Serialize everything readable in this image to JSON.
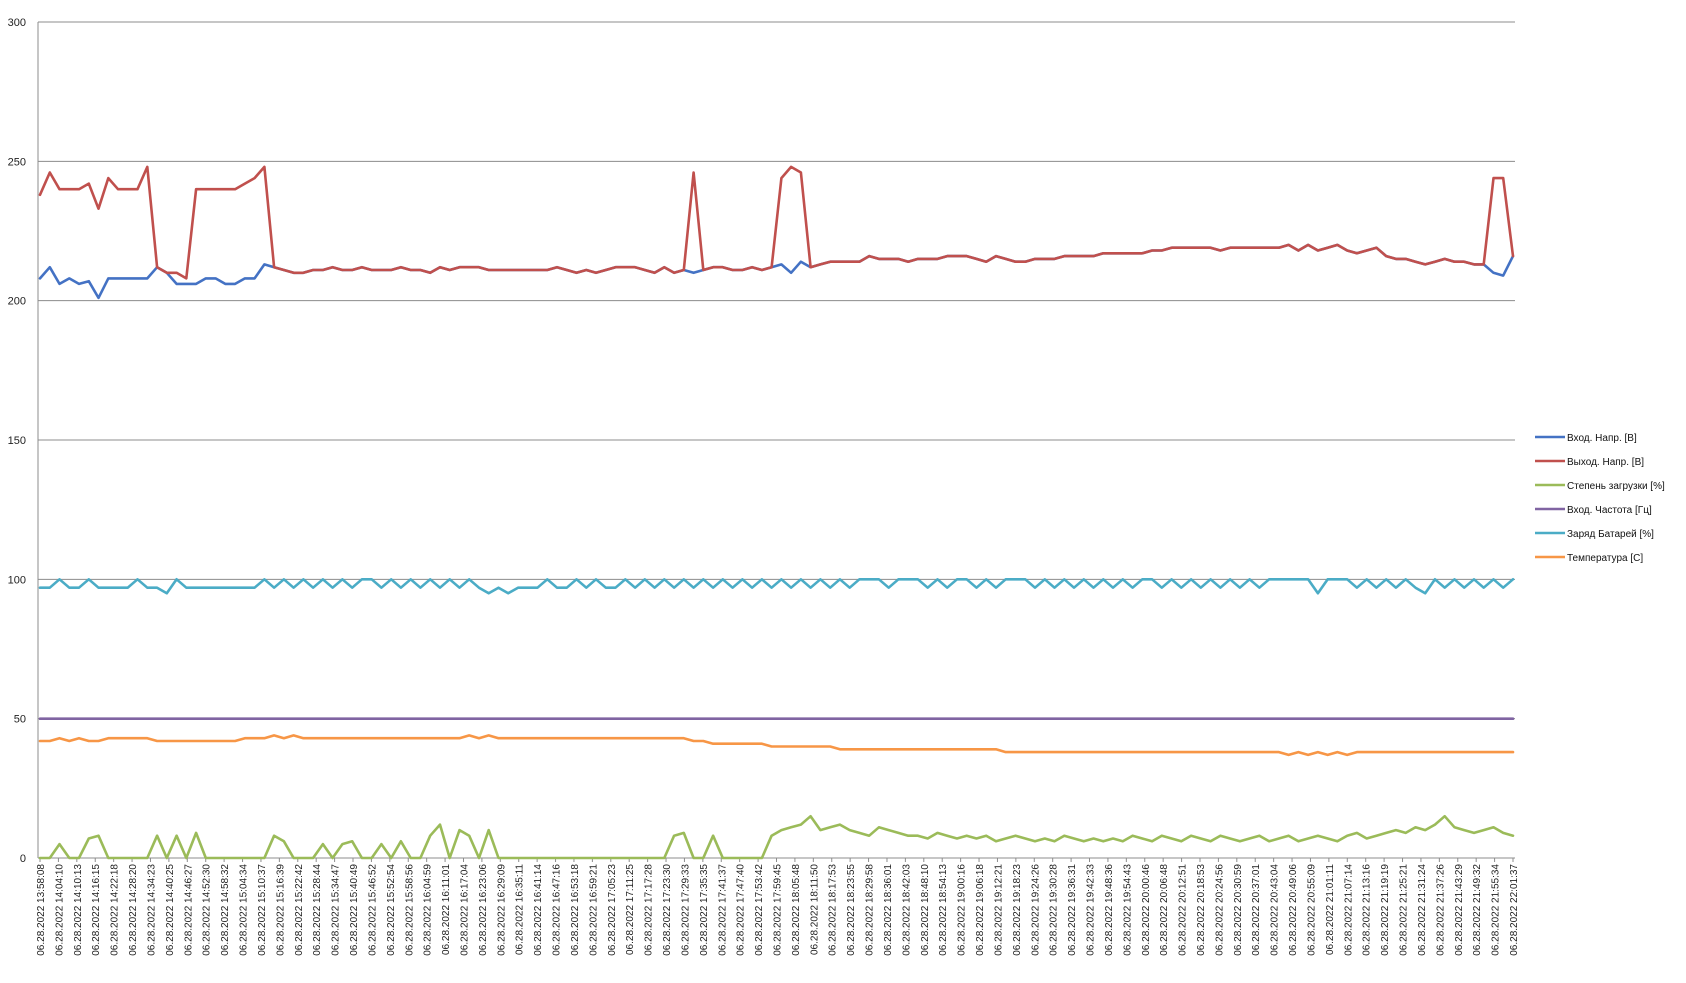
{
  "chart_data": {
    "type": "line",
    "title": "",
    "xlabel": "",
    "ylabel": "",
    "ylim": [
      0,
      300
    ],
    "y_ticks": [
      0,
      50,
      100,
      150,
      200,
      250,
      300
    ],
    "grid": "horizontal",
    "legend_position": "right",
    "x_tick_labels": [
      "06.28.2022 13:58:08",
      "06.28.2022 14:04:10",
      "06.28.2022 14:10:13",
      "06.28.2022 14:16:15",
      "06.28.2022 14:22:18",
      "06.28.2022 14:28:20",
      "06.28.2022 14:34:23",
      "06.28.2022 14:40:25",
      "06.28.2022 14:46:27",
      "06.28.2022 14:52:30",
      "06.28.2022 14:58:32",
      "06.28.2022 15:04:34",
      "06.28.2022 15:10:37",
      "06.28.2022 15:16:39",
      "06.28.2022 15:22:42",
      "06.28.2022 15:28:44",
      "06.28.2022 15:34:47",
      "06.28.2022 15:40:49",
      "06.28.2022 15:46:52",
      "06.28.2022 15:52:54",
      "06.28.2022 15:58:56",
      "06.28.2022 16:04:59",
      "06.28.2022 16:11:01",
      "06.28.2022 16:17:04",
      "06.28.2022 16:23:06",
      "06.28.2022 16:29:09",
      "06.28.2022 16:35:11",
      "06.28.2022 16:41:14",
      "06.28.2022 16:47:16",
      "06.28.2022 16:53:18",
      "06.28.2022 16:59:21",
      "06.28.2022 17:05:23",
      "06.28.2022 17:11:25",
      "06.28.2022 17:17:28",
      "06.28.2022 17:23:30",
      "06.28.2022 17:29:33",
      "06.28.2022 17:35:35",
      "06.28.2022 17:41:37",
      "06.28.2022 17:47:40",
      "06.28.2022 17:53:42",
      "06.28.2022 17:59:45",
      "06.28.2022 18:05:48",
      "06.28.2022 18:11:50",
      "06.28.2022 18:17:53",
      "06.28.2022 18:23:55",
      "06.28.2022 18:29:58",
      "06.28.2022 18:36:01",
      "06.28.2022 18:42:03",
      "06.28.2022 18:48:10",
      "06.28.2022 18:54:13",
      "06.28.2022 19:00:16",
      "06.28.2022 19:06:18",
      "06.28.2022 19:12:21",
      "06.28.2022 19:18:23",
      "06.28.2022 19:24:26",
      "06.28.2022 19:30:28",
      "06.28.2022 19:36:31",
      "06.28.2022 19:42:33",
      "06.28.2022 19:48:36",
      "06.28.2022 19:54:43",
      "06.28.2022 20:00:46",
      "06.28.2022 20:06:48",
      "06.28.2022 20:12:51",
      "06.28.2022 20:18:53",
      "06.28.2022 20:24:56",
      "06.28.2022 20:30:59",
      "06.28.2022 20:37:01",
      "06.28.2022 20:43:04",
      "06.28.2022 20:49:06",
      "06.28.2022 20:55:09",
      "06.28.2022 21:01:11",
      "06.28.2022 21:07:14",
      "06.28.2022 21:13:16",
      "06.28.2022 21:19:19",
      "06.28.2022 21:25:21",
      "06.28.2022 21:31:24",
      "06.28.2022 21:37:26",
      "06.28.2022 21:43:29",
      "06.28.2022 21:49:32",
      "06.28.2022 21:55:34",
      "06.28.2022 22:01:37"
    ],
    "series": [
      {
        "name": "Вход. Напр. [В]",
        "color": "#4472c4",
        "values": [
          208,
          212,
          206,
          208,
          206,
          207,
          201,
          208,
          208,
          208,
          208,
          208,
          212,
          210,
          206,
          206,
          206,
          208,
          208,
          206,
          206,
          208,
          208,
          213,
          212,
          211,
          210,
          210,
          211,
          211,
          212,
          211,
          211,
          212,
          211,
          211,
          211,
          212,
          211,
          211,
          210,
          212,
          211,
          212,
          212,
          212,
          211,
          211,
          211,
          211,
          211,
          211,
          211,
          212,
          211,
          210,
          211,
          210,
          211,
          212,
          212,
          212,
          211,
          210,
          212,
          210,
          211,
          210,
          211,
          212,
          212,
          211,
          211,
          212,
          211,
          212,
          213,
          210,
          214,
          212,
          213,
          214,
          214,
          214,
          214,
          216,
          215,
          215,
          215,
          214,
          215,
          215,
          215,
          216,
          216,
          216,
          215,
          214,
          216,
          215,
          214,
          214,
          215,
          215,
          215,
          216,
          216,
          216,
          216,
          217,
          217,
          217,
          217,
          217,
          218,
          218,
          219,
          219,
          219,
          219,
          219,
          218,
          219,
          219,
          219,
          219,
          219,
          219,
          220,
          218,
          220,
          218,
          219,
          220,
          218,
          217,
          218,
          219,
          216,
          215,
          215,
          214,
          213,
          214,
          215,
          214,
          214,
          213,
          213,
          210,
          209,
          216
        ]
      },
      {
        "name": "Выход. Напр. [В]",
        "color": "#c0504d",
        "values": [
          238,
          246,
          240,
          240,
          240,
          242,
          233,
          244,
          240,
          240,
          240,
          248,
          212,
          210,
          210,
          208,
          240,
          240,
          240,
          240,
          240,
          242,
          244,
          248,
          212,
          211,
          210,
          210,
          211,
          211,
          212,
          211,
          211,
          212,
          211,
          211,
          211,
          212,
          211,
          211,
          210,
          212,
          211,
          212,
          212,
          212,
          211,
          211,
          211,
          211,
          211,
          211,
          211,
          212,
          211,
          210,
          211,
          210,
          211,
          212,
          212,
          212,
          211,
          210,
          212,
          210,
          211,
          246,
          211,
          212,
          212,
          211,
          211,
          212,
          211,
          212,
          244,
          248,
          246,
          212,
          213,
          214,
          214,
          214,
          214,
          216,
          215,
          215,
          215,
          214,
          215,
          215,
          215,
          216,
          216,
          216,
          215,
          214,
          216,
          215,
          214,
          214,
          215,
          215,
          215,
          216,
          216,
          216,
          216,
          217,
          217,
          217,
          217,
          217,
          218,
          218,
          219,
          219,
          219,
          219,
          219,
          218,
          219,
          219,
          219,
          219,
          219,
          219,
          220,
          218,
          220,
          218,
          219,
          220,
          218,
          217,
          218,
          219,
          216,
          215,
          215,
          214,
          213,
          214,
          215,
          214,
          214,
          213,
          213,
          244,
          244,
          216
        ]
      },
      {
        "name": "Степень загрузки [%]",
        "color": "#9bbb59",
        "values": [
          0,
          0,
          5,
          0,
          0,
          7,
          8,
          0,
          0,
          0,
          0,
          0,
          8,
          0,
          8,
          0,
          9,
          0,
          0,
          0,
          0,
          0,
          0,
          0,
          8,
          6,
          0,
          0,
          0,
          5,
          0,
          5,
          6,
          0,
          0,
          5,
          0,
          6,
          0,
          0,
          8,
          12,
          0,
          10,
          8,
          0,
          10,
          0,
          0,
          0,
          0,
          0,
          0,
          0,
          0,
          0,
          0,
          0,
          0,
          0,
          0,
          0,
          0,
          0,
          0,
          8,
          9,
          0,
          0,
          8,
          0,
          0,
          0,
          0,
          0,
          8,
          10,
          11,
          12,
          15,
          10,
          11,
          12,
          10,
          9,
          8,
          11,
          10,
          9,
          8,
          8,
          7,
          9,
          8,
          7,
          8,
          7,
          8,
          6,
          7,
          8,
          7,
          6,
          7,
          6,
          8,
          7,
          6,
          7,
          6,
          7,
          6,
          8,
          7,
          6,
          8,
          7,
          6,
          8,
          7,
          6,
          8,
          7,
          6,
          7,
          8,
          6,
          7,
          8,
          6,
          7,
          8,
          7,
          6,
          8,
          9,
          7,
          8,
          9,
          10,
          9,
          11,
          10,
          12,
          15,
          11,
          10,
          9,
          10,
          11,
          9,
          8
        ]
      },
      {
        "name": "Вход. Частота [Гц]",
        "color": "#8064a2",
        "values": [
          50,
          50,
          50,
          50,
          50,
          50,
          50,
          50,
          50,
          50,
          50,
          50,
          50,
          50,
          50,
          50,
          50,
          50,
          50,
          50,
          50,
          50,
          50,
          50,
          50,
          50,
          50,
          50,
          50,
          50,
          50,
          50,
          50,
          50,
          50,
          50,
          50,
          50,
          50,
          50,
          50,
          50,
          50,
          50,
          50,
          50,
          50,
          50,
          50,
          50,
          50,
          50,
          50,
          50,
          50,
          50,
          50,
          50,
          50,
          50,
          50,
          50,
          50,
          50,
          50,
          50,
          50,
          50,
          50,
          50,
          50,
          50,
          50,
          50,
          50,
          50,
          50,
          50,
          50,
          50,
          50,
          50,
          50,
          50,
          50,
          50,
          50,
          50,
          50,
          50,
          50,
          50,
          50,
          50,
          50,
          50,
          50,
          50,
          50,
          50,
          50,
          50,
          50,
          50,
          50,
          50,
          50,
          50,
          50,
          50,
          50,
          50,
          50,
          50,
          50,
          50,
          50,
          50,
          50,
          50,
          50,
          50,
          50,
          50,
          50,
          50,
          50,
          50,
          50,
          50,
          50,
          50,
          50,
          50,
          50,
          50,
          50,
          50,
          50,
          50,
          50,
          50,
          50,
          50,
          50,
          50,
          50,
          50,
          50,
          50,
          50,
          50
        ]
      },
      {
        "name": "Заряд Батарей [%]",
        "color": "#4bacc6",
        "values": [
          97,
          97,
          100,
          97,
          97,
          100,
          97,
          97,
          97,
          97,
          100,
          97,
          97,
          95,
          100,
          97,
          97,
          97,
          97,
          97,
          97,
          97,
          97,
          100,
          97,
          100,
          97,
          100,
          97,
          100,
          97,
          100,
          97,
          100,
          100,
          97,
          100,
          97,
          100,
          97,
          100,
          97,
          100,
          97,
          100,
          97,
          95,
          97,
          95,
          97,
          97,
          97,
          100,
          97,
          97,
          100,
          97,
          100,
          97,
          97,
          100,
          97,
          100,
          97,
          100,
          97,
          100,
          97,
          100,
          97,
          100,
          97,
          100,
          97,
          100,
          97,
          100,
          97,
          100,
          97,
          100,
          97,
          100,
          97,
          100,
          100,
          100,
          97,
          100,
          100,
          100,
          97,
          100,
          97,
          100,
          100,
          97,
          100,
          97,
          100,
          100,
          100,
          97,
          100,
          97,
          100,
          97,
          100,
          97,
          100,
          97,
          100,
          97,
          100,
          100,
          97,
          100,
          97,
          100,
          97,
          100,
          97,
          100,
          97,
          100,
          97,
          100,
          100,
          100,
          100,
          100,
          95,
          100,
          100,
          100,
          97,
          100,
          97,
          100,
          97,
          100,
          97,
          95,
          100,
          97,
          100,
          97,
          100,
          97,
          100,
          97,
          100
        ]
      },
      {
        "name": "Температура [C]",
        "color": "#f79646",
        "values": [
          42,
          42,
          43,
          42,
          43,
          42,
          42,
          43,
          43,
          43,
          43,
          43,
          42,
          42,
          42,
          42,
          42,
          42,
          42,
          42,
          42,
          43,
          43,
          43,
          44,
          43,
          44,
          43,
          43,
          43,
          43,
          43,
          43,
          43,
          43,
          43,
          43,
          43,
          43,
          43,
          43,
          43,
          43,
          43,
          44,
          43,
          44,
          43,
          43,
          43,
          43,
          43,
          43,
          43,
          43,
          43,
          43,
          43,
          43,
          43,
          43,
          43,
          43,
          43,
          43,
          43,
          43,
          42,
          42,
          41,
          41,
          41,
          41,
          41,
          41,
          40,
          40,
          40,
          40,
          40,
          40,
          40,
          39,
          39,
          39,
          39,
          39,
          39,
          39,
          39,
          39,
          39,
          39,
          39,
          39,
          39,
          39,
          39,
          39,
          38,
          38,
          38,
          38,
          38,
          38,
          38,
          38,
          38,
          38,
          38,
          38,
          38,
          38,
          38,
          38,
          38,
          38,
          38,
          38,
          38,
          38,
          38,
          38,
          38,
          38,
          38,
          38,
          38,
          37,
          38,
          37,
          38,
          37,
          38,
          37,
          38,
          38,
          38,
          38,
          38,
          38,
          38,
          38,
          38,
          38,
          38,
          38,
          38,
          38,
          38,
          38,
          38
        ]
      }
    ]
  }
}
